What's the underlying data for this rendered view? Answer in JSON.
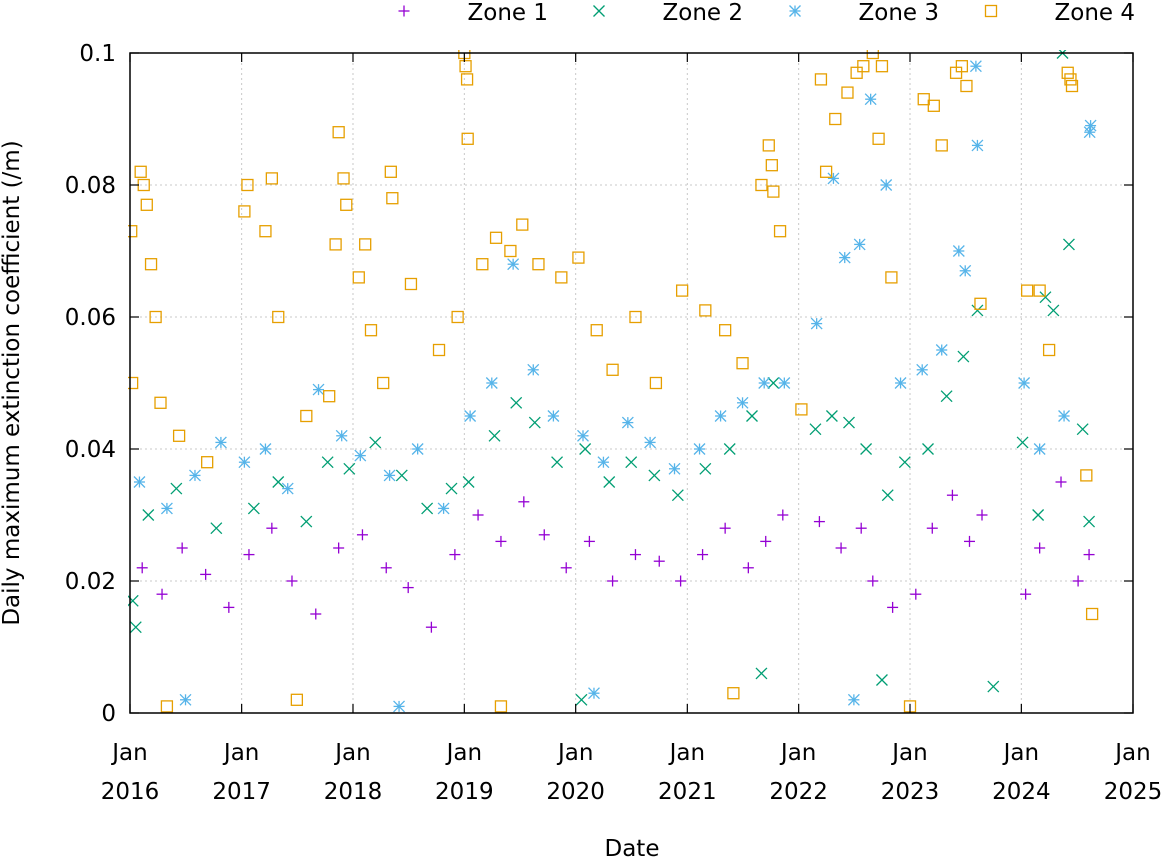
{
  "chart_data": {
    "type": "scatter",
    "title": "",
    "xlabel": "Date",
    "ylabel": "Daily maximum extinction coefficient (/m)",
    "xlim": [
      "2016-01-01",
      "2025-01-01"
    ],
    "ylim": [
      0,
      0.1
    ],
    "grid": true,
    "legend_position": "top",
    "y_ticks": [
      {
        "value": 0,
        "label": "0"
      },
      {
        "value": 0.02,
        "label": "0.02"
      },
      {
        "value": 0.04,
        "label": "0.04"
      },
      {
        "value": 0.06,
        "label": "0.06"
      },
      {
        "value": 0.08,
        "label": "0.08"
      },
      {
        "value": 0.1,
        "label": "0.1"
      }
    ],
    "x_ticks": [
      {
        "date": "2016-01-01",
        "line1": "Jan",
        "line2": "2016"
      },
      {
        "date": "2017-01-01",
        "line1": "Jan",
        "line2": "2017"
      },
      {
        "date": "2018-01-01",
        "line1": "Jan",
        "line2": "2018"
      },
      {
        "date": "2019-01-01",
        "line1": "Jan",
        "line2": "2019"
      },
      {
        "date": "2020-01-01",
        "line1": "Jan",
        "line2": "2020"
      },
      {
        "date": "2021-01-01",
        "line1": "Jan",
        "line2": "2021"
      },
      {
        "date": "2022-01-01",
        "line1": "Jan",
        "line2": "2022"
      },
      {
        "date": "2023-01-01",
        "line1": "Jan",
        "line2": "2023"
      },
      {
        "date": "2024-01-01",
        "line1": "Jan",
        "line2": "2024"
      },
      {
        "date": "2025-01-01",
        "line1": "Jan",
        "line2": "2025"
      }
    ],
    "series": [
      {
        "name": "Zone 1",
        "marker": "plus",
        "color": "#9400D3",
        "points": [
          [
            "2016-02-10",
            0.022
          ],
          [
            "2016-04-15",
            0.018
          ],
          [
            "2016-06-20",
            0.025
          ],
          [
            "2016-09-05",
            0.021
          ],
          [
            "2016-11-20",
            0.016
          ],
          [
            "2017-01-25",
            0.024
          ],
          [
            "2017-04-10",
            0.028
          ],
          [
            "2017-06-15",
            0.02
          ],
          [
            "2017-09-01",
            0.015
          ],
          [
            "2017-11-15",
            0.025
          ],
          [
            "2018-02-01",
            0.027
          ],
          [
            "2018-04-20",
            0.022
          ],
          [
            "2018-07-01",
            0.019
          ],
          [
            "2018-09-15",
            0.013
          ],
          [
            "2018-12-01",
            0.024
          ],
          [
            "2019-02-15",
            0.03
          ],
          [
            "2019-05-01",
            0.026
          ],
          [
            "2019-07-15",
            0.032
          ],
          [
            "2019-09-20",
            0.027
          ],
          [
            "2019-12-01",
            0.022
          ],
          [
            "2020-02-15",
            0.026
          ],
          [
            "2020-05-01",
            0.02
          ],
          [
            "2020-07-15",
            0.024
          ],
          [
            "2020-10-01",
            0.023
          ],
          [
            "2020-12-10",
            0.02
          ],
          [
            "2021-02-20",
            0.024
          ],
          [
            "2021-05-05",
            0.028
          ],
          [
            "2021-07-20",
            0.022
          ],
          [
            "2021-09-15",
            0.026
          ],
          [
            "2021-11-10",
            0.03
          ],
          [
            "2022-03-10",
            0.029
          ],
          [
            "2022-05-20",
            0.025
          ],
          [
            "2022-07-25",
            0.028
          ],
          [
            "2022-09-01",
            0.02
          ],
          [
            "2022-11-05",
            0.016
          ],
          [
            "2023-01-20",
            0.018
          ],
          [
            "2023-03-15",
            0.028
          ],
          [
            "2023-05-20",
            0.033
          ],
          [
            "2023-07-15",
            0.026
          ],
          [
            "2023-08-25",
            0.03
          ],
          [
            "2024-01-15",
            0.018
          ],
          [
            "2024-03-01",
            0.025
          ],
          [
            "2024-05-10",
            0.035
          ],
          [
            "2024-07-05",
            0.02
          ],
          [
            "2024-08-10",
            0.024
          ]
        ]
      },
      {
        "name": "Zone 2",
        "marker": "cross",
        "color": "#009E73",
        "points": [
          [
            "2016-01-10",
            0.017
          ],
          [
            "2016-01-20",
            0.013
          ],
          [
            "2016-03-01",
            0.03
          ],
          [
            "2016-06-01",
            0.034
          ],
          [
            "2016-10-10",
            0.028
          ],
          [
            "2017-02-10",
            0.031
          ],
          [
            "2017-05-01",
            0.035
          ],
          [
            "2017-08-01",
            0.029
          ],
          [
            "2017-10-10",
            0.038
          ],
          [
            "2017-12-20",
            0.037
          ],
          [
            "2018-03-15",
            0.041
          ],
          [
            "2018-06-10",
            0.036
          ],
          [
            "2018-09-01",
            0.031
          ],
          [
            "2018-11-20",
            0.034
          ],
          [
            "2019-01-15",
            0.035
          ],
          [
            "2019-04-10",
            0.042
          ],
          [
            "2019-06-20",
            0.047
          ],
          [
            "2019-08-20",
            0.044
          ],
          [
            "2019-11-01",
            0.038
          ],
          [
            "2020-02-01",
            0.04
          ],
          [
            "2020-04-20",
            0.035
          ],
          [
            "2020-07-01",
            0.038
          ],
          [
            "2020-09-15",
            0.036
          ],
          [
            "2020-12-01",
            0.033
          ],
          [
            "2021-03-01",
            0.037
          ],
          [
            "2021-05-20",
            0.04
          ],
          [
            "2021-08-01",
            0.045
          ],
          [
            "2021-10-10",
            0.05
          ],
          [
            "2022-02-25",
            0.043
          ],
          [
            "2022-04-20",
            0.045
          ],
          [
            "2022-06-15",
            0.044
          ],
          [
            "2022-08-10",
            0.04
          ],
          [
            "2022-10-20",
            0.033
          ],
          [
            "2022-12-15",
            0.038
          ],
          [
            "2023-03-01",
            0.04
          ],
          [
            "2023-05-01",
            0.048
          ],
          [
            "2023-06-25",
            0.054
          ],
          [
            "2023-08-10",
            0.061
          ],
          [
            "2024-01-05",
            0.041
          ],
          [
            "2024-02-25",
            0.03
          ],
          [
            "2024-03-20",
            0.063
          ],
          [
            "2024-04-15",
            0.061
          ],
          [
            "2024-05-15",
            0.1
          ],
          [
            "2024-06-05",
            0.071
          ],
          [
            "2024-07-20",
            0.043
          ],
          [
            "2024-08-10",
            0.029
          ],
          [
            "2022-10-01",
            0.005
          ],
          [
            "2020-01-20",
            0.002
          ],
          [
            "2021-09-01",
            0.006
          ],
          [
            "2023-10-01",
            0.004
          ]
        ]
      },
      {
        "name": "Zone 3",
        "marker": "star",
        "color": "#56B4E9",
        "points": [
          [
            "2016-02-01",
            0.035
          ],
          [
            "2016-05-01",
            0.031
          ],
          [
            "2016-08-01",
            0.036
          ],
          [
            "2016-10-25",
            0.041
          ],
          [
            "2017-01-10",
            0.038
          ],
          [
            "2017-03-20",
            0.04
          ],
          [
            "2017-06-01",
            0.034
          ],
          [
            "2017-09-10",
            0.049
          ],
          [
            "2017-11-25",
            0.042
          ],
          [
            "2018-01-25",
            0.039
          ],
          [
            "2018-05-01",
            0.036
          ],
          [
            "2018-08-01",
            0.04
          ],
          [
            "2018-10-25",
            0.031
          ],
          [
            "2019-01-20",
            0.045
          ],
          [
            "2019-04-01",
            0.05
          ],
          [
            "2019-06-10",
            0.068
          ],
          [
            "2019-08-15",
            0.052
          ],
          [
            "2019-10-20",
            0.045
          ],
          [
            "2020-01-25",
            0.042
          ],
          [
            "2020-04-01",
            0.038
          ],
          [
            "2020-06-20",
            0.044
          ],
          [
            "2020-09-01",
            0.041
          ],
          [
            "2020-11-20",
            0.037
          ],
          [
            "2021-02-10",
            0.04
          ],
          [
            "2021-04-20",
            0.045
          ],
          [
            "2021-07-01",
            0.047
          ],
          [
            "2021-09-10",
            0.05
          ],
          [
            "2021-11-15",
            0.05
          ],
          [
            "2022-03-01",
            0.059
          ],
          [
            "2022-04-25",
            0.081
          ],
          [
            "2022-06-01",
            0.069
          ],
          [
            "2022-07-20",
            0.071
          ],
          [
            "2022-08-25",
            0.093
          ],
          [
            "2022-10-15",
            0.08
          ],
          [
            "2022-12-01",
            0.05
          ],
          [
            "2023-02-10",
            0.052
          ],
          [
            "2023-04-15",
            0.055
          ],
          [
            "2023-06-10",
            0.07
          ],
          [
            "2023-07-01",
            0.067
          ],
          [
            "2023-08-10",
            0.086
          ],
          [
            "2023-08-05",
            0.098
          ],
          [
            "2024-01-10",
            0.05
          ],
          [
            "2024-03-01",
            0.04
          ],
          [
            "2024-05-20",
            0.045
          ],
          [
            "2024-08-15",
            0.089
          ],
          [
            "2024-08-12",
            0.088
          ],
          [
            "2016-07-01",
            0.002
          ],
          [
            "2018-06-01",
            0.001
          ],
          [
            "2020-03-01",
            0.003
          ],
          [
            "2022-07-01",
            0.002
          ]
        ]
      },
      {
        "name": "Zone 4",
        "marker": "square",
        "color": "#E69F00",
        "points": [
          [
            "2016-01-05",
            0.073
          ],
          [
            "2016-01-08",
            0.05
          ],
          [
            "2016-02-05",
            0.082
          ],
          [
            "2016-02-15",
            0.08
          ],
          [
            "2016-02-25",
            0.077
          ],
          [
            "2016-03-10",
            0.068
          ],
          [
            "2016-03-25",
            0.06
          ],
          [
            "2016-04-10",
            0.047
          ],
          [
            "2016-06-10",
            0.042
          ],
          [
            "2016-09-10",
            0.038
          ],
          [
            "2017-01-10",
            0.076
          ],
          [
            "2017-01-20",
            0.08
          ],
          [
            "2017-03-20",
            0.073
          ],
          [
            "2017-04-10",
            0.081
          ],
          [
            "2017-05-01",
            0.06
          ],
          [
            "2017-08-01",
            0.045
          ],
          [
            "2017-10-15",
            0.048
          ],
          [
            "2017-11-05",
            0.071
          ],
          [
            "2017-11-15",
            0.088
          ],
          [
            "2017-12-01",
            0.081
          ],
          [
            "2017-12-10",
            0.077
          ],
          [
            "2018-01-20",
            0.066
          ],
          [
            "2018-02-10",
            0.071
          ],
          [
            "2018-03-01",
            0.058
          ],
          [
            "2018-04-10",
            0.05
          ],
          [
            "2018-05-05",
            0.082
          ],
          [
            "2018-05-10",
            0.078
          ],
          [
            "2018-07-10",
            0.065
          ],
          [
            "2018-10-10",
            0.055
          ],
          [
            "2018-12-10",
            0.06
          ],
          [
            "2019-01-01",
            0.1
          ],
          [
            "2019-01-05",
            0.098
          ],
          [
            "2019-01-10",
            0.096
          ],
          [
            "2019-01-12",
            0.087
          ],
          [
            "2019-03-01",
            0.068
          ],
          [
            "2019-04-15",
            0.072
          ],
          [
            "2019-06-01",
            0.07
          ],
          [
            "2019-07-10",
            0.074
          ],
          [
            "2019-09-01",
            0.068
          ],
          [
            "2019-11-15",
            0.066
          ],
          [
            "2020-01-10",
            0.069
          ],
          [
            "2020-03-10",
            0.058
          ],
          [
            "2020-05-01",
            0.052
          ],
          [
            "2020-07-15",
            0.06
          ],
          [
            "2020-09-20",
            0.05
          ],
          [
            "2020-12-15",
            0.064
          ],
          [
            "2021-03-01",
            0.061
          ],
          [
            "2021-05-05",
            0.058
          ],
          [
            "2021-07-01",
            0.053
          ],
          [
            "2021-09-01",
            0.08
          ],
          [
            "2021-09-25",
            0.086
          ],
          [
            "2021-10-05",
            0.083
          ],
          [
            "2021-10-10",
            0.079
          ],
          [
            "2021-11-01",
            0.073
          ],
          [
            "2022-01-10",
            0.046
          ],
          [
            "2022-03-15",
            0.096
          ],
          [
            "2022-04-01",
            0.082
          ],
          [
            "2022-05-01",
            0.09
          ],
          [
            "2022-06-10",
            0.094
          ],
          [
            "2022-07-10",
            0.097
          ],
          [
            "2022-08-01",
            0.098
          ],
          [
            "2022-09-01",
            0.1
          ],
          [
            "2022-10-01",
            0.098
          ],
          [
            "2022-09-20",
            0.087
          ],
          [
            "2022-11-01",
            0.066
          ],
          [
            "2023-02-15",
            0.093
          ],
          [
            "2023-03-20",
            0.092
          ],
          [
            "2023-04-15",
            0.086
          ],
          [
            "2023-06-01",
            0.097
          ],
          [
            "2023-06-20",
            0.098
          ],
          [
            "2023-07-05",
            0.095
          ],
          [
            "2023-08-20",
            0.062
          ],
          [
            "2024-01-20",
            0.064
          ],
          [
            "2024-03-01",
            0.064
          ],
          [
            "2024-04-01",
            0.055
          ],
          [
            "2024-06-01",
            0.097
          ],
          [
            "2024-06-10",
            0.096
          ],
          [
            "2024-06-15",
            0.095
          ],
          [
            "2024-08-01",
            0.036
          ],
          [
            "2024-08-20",
            0.015
          ],
          [
            "2016-05-01",
            0.001
          ],
          [
            "2017-07-01",
            0.002
          ],
          [
            "2019-05-01",
            0.001
          ],
          [
            "2021-06-01",
            0.003
          ],
          [
            "2023-01-01",
            0.001
          ]
        ]
      }
    ]
  }
}
